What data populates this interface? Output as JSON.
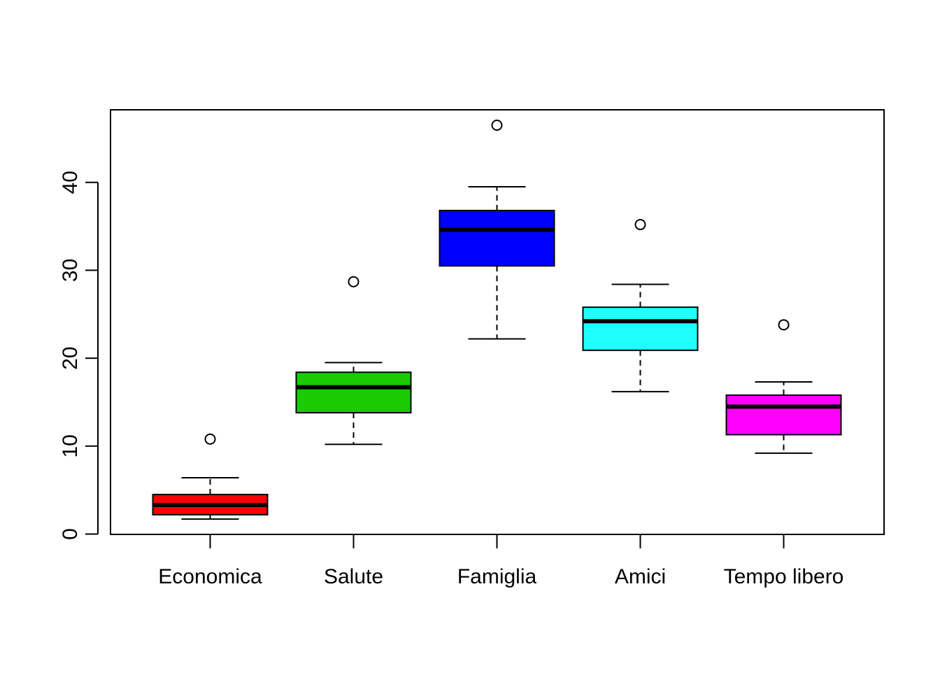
{
  "chart_data": {
    "type": "box",
    "title": "",
    "xlabel": "",
    "ylabel": "",
    "ylim": [
      0,
      48.2
    ],
    "yticks": [
      0,
      10,
      20,
      30,
      40
    ],
    "grid": false,
    "categories": [
      "Economica",
      "Salute",
      "Famiglia",
      "Amici",
      "Tempo libero"
    ],
    "boxes": [
      {
        "category": "Economica",
        "color": "#FF0000",
        "whisker_low": 1.7,
        "q1": 2.2,
        "median": 3.3,
        "q3": 4.5,
        "whisker_high": 6.4,
        "outliers": [
          10.8
        ]
      },
      {
        "category": "Salute",
        "color": "#19CB00",
        "whisker_low": 10.2,
        "q1": 13.8,
        "median": 16.7,
        "q3": 18.4,
        "whisker_high": 19.5,
        "outliers": [
          28.7
        ]
      },
      {
        "category": "Famiglia",
        "color": "#0000FF",
        "whisker_low": 22.2,
        "q1": 30.5,
        "median": 34.6,
        "q3": 36.8,
        "whisker_high": 39.5,
        "outliers": [
          46.5
        ]
      },
      {
        "category": "Amici",
        "color": "#20FFFF",
        "whisker_low": 16.2,
        "q1": 20.9,
        "median": 24.2,
        "q3": 25.8,
        "whisker_high": 28.4,
        "outliers": [
          35.2
        ]
      },
      {
        "category": "Tempo libero",
        "color": "#FF00FF",
        "whisker_low": 9.2,
        "q1": 11.3,
        "median": 14.5,
        "q3": 15.8,
        "whisker_high": 17.3,
        "outliers": [
          23.8
        ]
      }
    ]
  }
}
